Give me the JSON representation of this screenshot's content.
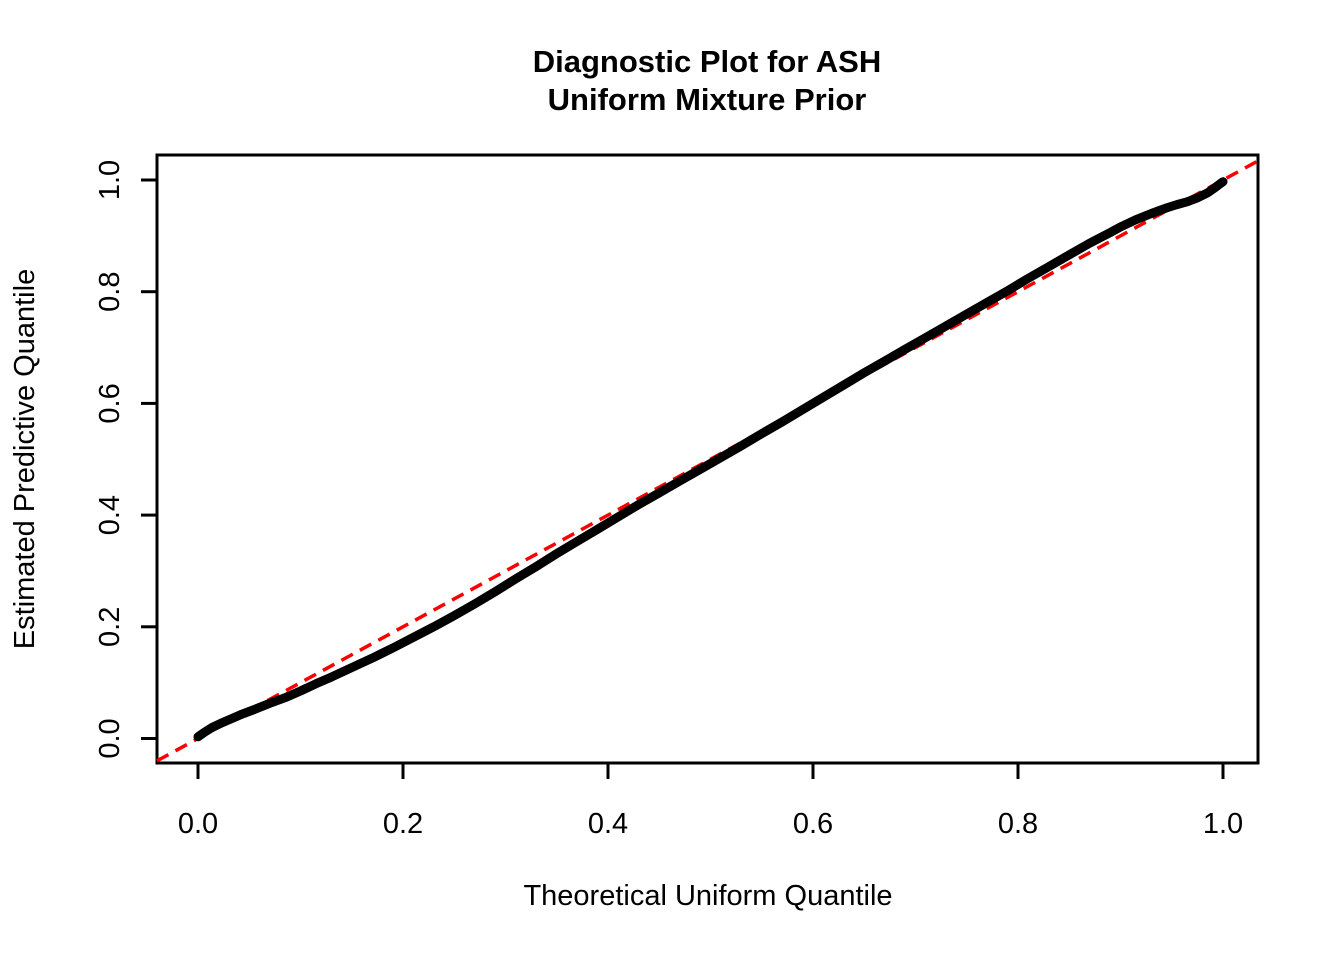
{
  "chart_data": {
    "type": "line",
    "title": "Diagnostic Plot for ASH",
    "subtitle": "Uniform Mixture Prior",
    "xlabel": "Theoretical Uniform Quantile",
    "ylabel": "Estimated Predictive Quantile",
    "xlim": [
      -0.04,
      1.04
    ],
    "ylim": [
      -0.04,
      1.04
    ],
    "grid": "off",
    "legend": "none",
    "x_ticks": {
      "values": [
        0.0,
        0.2,
        0.4,
        0.6,
        0.8,
        1.0
      ],
      "labels": [
        "0.0",
        "0.2",
        "0.4",
        "0.6",
        "0.8",
        "1.0"
      ]
    },
    "y_ticks": {
      "values": [
        0.0,
        0.2,
        0.4,
        0.6,
        0.8,
        1.0
      ],
      "labels": [
        "0.0",
        "0.2",
        "0.4",
        "0.6",
        "0.8",
        "1.0"
      ]
    },
    "reference_line": {
      "name": "identity-diagonal",
      "slope": 1,
      "intercept": 0,
      "color": "#FF0000",
      "style": "dashed"
    },
    "series": [
      {
        "name": "estimated-vs-theoretical-quantiles",
        "color": "#000000",
        "points": [
          [
            0.0,
            0.003
          ],
          [
            0.006,
            0.011
          ],
          [
            0.014,
            0.02
          ],
          [
            0.022,
            0.027
          ],
          [
            0.032,
            0.035
          ],
          [
            0.042,
            0.043
          ],
          [
            0.055,
            0.052
          ],
          [
            0.07,
            0.063
          ],
          [
            0.085,
            0.073
          ],
          [
            0.1,
            0.085
          ],
          [
            0.115,
            0.098
          ],
          [
            0.13,
            0.11
          ],
          [
            0.15,
            0.127
          ],
          [
            0.17,
            0.144
          ],
          [
            0.19,
            0.162
          ],
          [
            0.21,
            0.181
          ],
          [
            0.23,
            0.2
          ],
          [
            0.25,
            0.22
          ],
          [
            0.27,
            0.241
          ],
          [
            0.29,
            0.263
          ],
          [
            0.31,
            0.286
          ],
          [
            0.33,
            0.308
          ],
          [
            0.35,
            0.331
          ],
          [
            0.37,
            0.353
          ],
          [
            0.39,
            0.375
          ],
          [
            0.41,
            0.397
          ],
          [
            0.43,
            0.419
          ],
          [
            0.45,
            0.44
          ],
          [
            0.47,
            0.461
          ],
          [
            0.49,
            0.482
          ],
          [
            0.51,
            0.503
          ],
          [
            0.53,
            0.524
          ],
          [
            0.55,
            0.546
          ],
          [
            0.57,
            0.567
          ],
          [
            0.59,
            0.589
          ],
          [
            0.61,
            0.611
          ],
          [
            0.63,
            0.633
          ],
          [
            0.65,
            0.655
          ],
          [
            0.67,
            0.676
          ],
          [
            0.69,
            0.697
          ],
          [
            0.71,
            0.718
          ],
          [
            0.73,
            0.739
          ],
          [
            0.75,
            0.76
          ],
          [
            0.77,
            0.781
          ],
          [
            0.79,
            0.802
          ],
          [
            0.81,
            0.824
          ],
          [
            0.83,
            0.845
          ],
          [
            0.85,
            0.866
          ],
          [
            0.87,
            0.887
          ],
          [
            0.89,
            0.906
          ],
          [
            0.9,
            0.916
          ],
          [
            0.915,
            0.929
          ],
          [
            0.93,
            0.94
          ],
          [
            0.945,
            0.95
          ],
          [
            0.955,
            0.956
          ],
          [
            0.965,
            0.961
          ],
          [
            0.975,
            0.968
          ],
          [
            0.985,
            0.977
          ],
          [
            0.992,
            0.986
          ],
          [
            0.997,
            0.993
          ],
          [
            1.0,
            0.997
          ]
        ]
      }
    ]
  }
}
